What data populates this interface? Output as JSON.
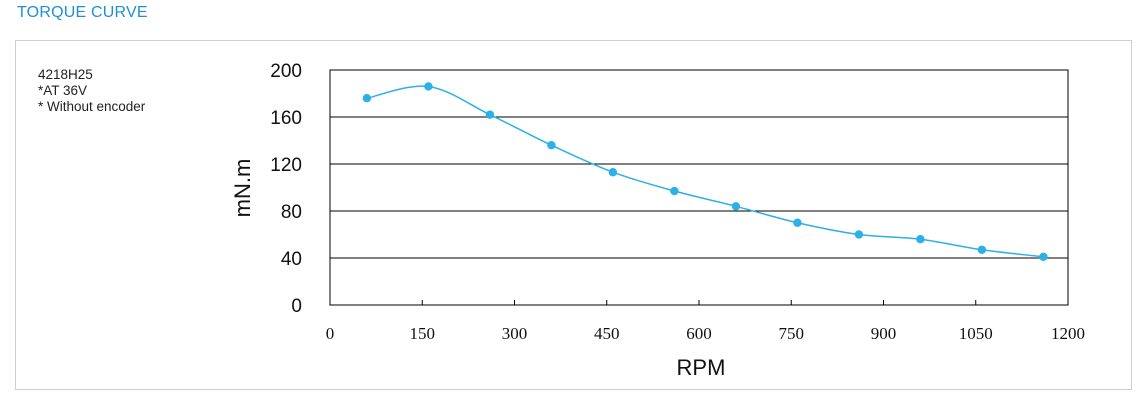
{
  "header": {
    "title": "TORQUE CURVE"
  },
  "notes": [
    "4218H25",
    "*AT 36V",
    "* Without encoder"
  ],
  "colors": {
    "accent": "#1e8fd3",
    "series": "#2bb0e8",
    "gridline": "#000000"
  },
  "chart_data": {
    "type": "line",
    "title": "",
    "xlabel": "RPM",
    "ylabel": "mN.m",
    "xlim": [
      0,
      1200
    ],
    "ylim": [
      0,
      200
    ],
    "xticks": [
      0,
      150,
      300,
      450,
      600,
      750,
      900,
      1050,
      1200
    ],
    "yticks": [
      0,
      40,
      80,
      120,
      160,
      200
    ],
    "grid": "horizontal",
    "legend": "none",
    "series": [
      {
        "x": [
          60,
          160,
          260,
          360,
          460,
          560,
          660,
          760,
          860,
          960,
          1060,
          1160
        ],
        "y": [
          176,
          186,
          162,
          136,
          113,
          97,
          84,
          70,
          60,
          56,
          47,
          41
        ]
      }
    ]
  }
}
